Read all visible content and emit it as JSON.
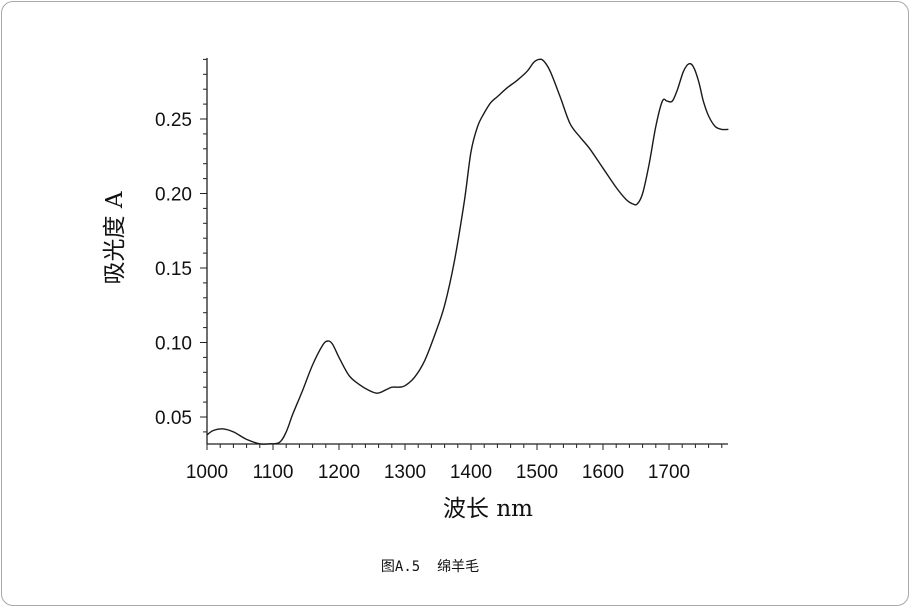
{
  "caption": "图A.5  绵羊毛",
  "chart_data": {
    "type": "line",
    "title": "",
    "xlabel": "波长 nm",
    "ylabel": "吸光度 A",
    "xlim": [
      1000,
      1790
    ],
    "ylim": [
      0.032,
      0.295
    ],
    "x_ticks": [
      "1000",
      "1100",
      "1200",
      "1300",
      "1400",
      "1500",
      "1600",
      "1700"
    ],
    "y_ticks": [
      "0.05",
      "0.10",
      "0.15",
      "0.20",
      "0.25"
    ],
    "grid": false,
    "series": [
      {
        "name": "",
        "x": [
          1000,
          1010,
          1025,
          1040,
          1060,
          1080,
          1095,
          1110,
          1120,
          1130,
          1145,
          1160,
          1175,
          1183,
          1190,
          1200,
          1215,
          1230,
          1245,
          1258,
          1270,
          1280,
          1290,
          1300,
          1315,
          1330,
          1345,
          1360,
          1375,
          1390,
          1400,
          1410,
          1420,
          1430,
          1440,
          1455,
          1470,
          1485,
          1495,
          1503,
          1510,
          1520,
          1535,
          1550,
          1565,
          1580,
          1600,
          1620,
          1635,
          1645,
          1652,
          1660,
          1670,
          1680,
          1690,
          1697,
          1705,
          1713,
          1722,
          1730,
          1737,
          1745,
          1752,
          1760,
          1770,
          1780,
          1790
        ],
        "y": [
          0.038,
          0.041,
          0.042,
          0.04,
          0.035,
          0.032,
          0.032,
          0.033,
          0.04,
          0.052,
          0.068,
          0.085,
          0.098,
          0.101,
          0.099,
          0.09,
          0.078,
          0.072,
          0.068,
          0.066,
          0.068,
          0.07,
          0.07,
          0.071,
          0.077,
          0.088,
          0.105,
          0.125,
          0.155,
          0.195,
          0.228,
          0.245,
          0.254,
          0.261,
          0.265,
          0.271,
          0.276,
          0.282,
          0.288,
          0.29,
          0.289,
          0.282,
          0.265,
          0.247,
          0.238,
          0.23,
          0.217,
          0.204,
          0.196,
          0.193,
          0.193,
          0.2,
          0.22,
          0.245,
          0.262,
          0.262,
          0.262,
          0.27,
          0.282,
          0.287,
          0.285,
          0.275,
          0.262,
          0.252,
          0.245,
          0.243,
          0.243
        ]
      }
    ]
  }
}
